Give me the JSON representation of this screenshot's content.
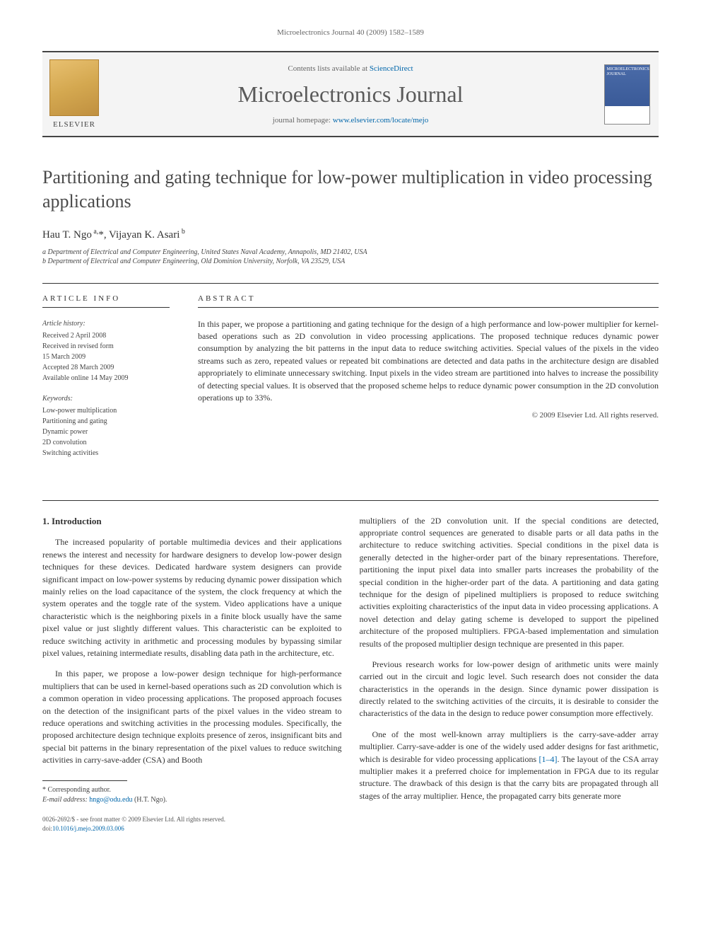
{
  "header": {
    "citation": "Microelectronics Journal 40 (2009) 1582–1589"
  },
  "banner": {
    "contents_prefix": "Contents lists available at ",
    "contents_link": "ScienceDirect",
    "journal_name": "Microelectronics Journal",
    "homepage_prefix": "journal homepage: ",
    "homepage_link": "www.elsevier.com/locate/mejo",
    "publisher": "ELSEVIER",
    "cover_label": "MICROELECTRONICS JOURNAL"
  },
  "title": "Partitioning and gating technique for low-power multiplication in video processing applications",
  "authors": "Hau T. Ngo a,*, Vijayan K. Asari b",
  "affiliations": {
    "a": "a Department of Electrical and Computer Engineering, United States Naval Academy, Annapolis, MD 21402, USA",
    "b": "b Department of Electrical and Computer Engineering, Old Dominion University, Norfolk, VA 23529, USA"
  },
  "article_info": {
    "label": "ARTICLE INFO",
    "history_label": "Article history:",
    "history": [
      "Received 2 April 2008",
      "Received in revised form",
      "15 March 2009",
      "Accepted 28 March 2009",
      "Available online 14 May 2009"
    ],
    "keywords_label": "Keywords:",
    "keywords": [
      "Low-power multiplication",
      "Partitioning and gating",
      "Dynamic power",
      "2D convolution",
      "Switching activities"
    ]
  },
  "abstract": {
    "label": "ABSTRACT",
    "text": "In this paper, we propose a partitioning and gating technique for the design of a high performance and low-power multiplier for kernel-based operations such as 2D convolution in video processing applications. The proposed technique reduces dynamic power consumption by analyzing the bit patterns in the input data to reduce switching activities. Special values of the pixels in the video streams such as zero, repeated values or repeated bit combinations are detected and data paths in the architecture design are disabled appropriately to eliminate unnecessary switching. Input pixels in the video stream are partitioned into halves to increase the possibility of detecting special values. It is observed that the proposed scheme helps to reduce dynamic power consumption in the 2D convolution operations up to 33%.",
    "copyright": "© 2009 Elsevier Ltd. All rights reserved."
  },
  "body": {
    "section_heading": "1. Introduction",
    "left_paragraphs": [
      "The increased popularity of portable multimedia devices and their applications renews the interest and necessity for hardware designers to develop low-power design techniques for these devices. Dedicated hardware system designers can provide significant impact on low-power systems by reducing dynamic power dissipation which mainly relies on the load capacitance of the system, the clock frequency at which the system operates and the toggle rate of the system. Video applications have a unique characteristic which is the neighboring pixels in a finite block usually have the same pixel value or just slightly different values. This characteristic can be exploited to reduce switching activity in arithmetic and processing modules by bypassing similar pixel values, retaining intermediate results, disabling data path in the architecture, etc.",
      "In this paper, we propose a low-power design technique for high-performance multipliers that can be used in kernel-based operations such as 2D convolution which is a common operation in video processing applications. The proposed approach focuses on the detection of the insignificant parts of the pixel values in the video stream to reduce operations and switching activities in the processing modules. Specifically, the proposed architecture design technique exploits presence of zeros, insignificant bits and special bit patterns in the binary representation of the pixel values to reduce switching activities in carry-save-adder (CSA) and Booth"
    ],
    "right_paragraphs": [
      "multipliers of the 2D convolution unit. If the special conditions are detected, appropriate control sequences are generated to disable parts or all data paths in the architecture to reduce switching activities. Special conditions in the pixel data is generally detected in the higher-order part of the binary representations. Therefore, partitioning the input pixel data into smaller parts increases the probability of the special condition in the higher-order part of the data. A partitioning and data gating technique for the design of pipelined multipliers is proposed to reduce switching activities exploiting characteristics of the input data in video processing applications. A novel detection and delay gating scheme is developed to support the pipelined architecture of the proposed multipliers. FPGA-based implementation and simulation results of the proposed multiplier design technique are presented in this paper.",
      "Previous research works for low-power design of arithmetic units were mainly carried out in the circuit and logic level. Such research does not consider the data characteristics in the operands in the design. Since dynamic power dissipation is directly related to the switching activities of the circuits, it is desirable to consider the characteristics of the data in the design to reduce power consumption more effectively.",
      "One of the most well-known array multipliers is the carry-save-adder array multiplier. Carry-save-adder is one of the widely used adder designs for fast arithmetic, which is desirable for video processing applications [1–4]. The layout of the CSA array multiplier makes it a preferred choice for implementation in FPGA due to its regular structure. The drawback of this design is that the carry bits are propagated through all stages of the array multiplier. Hence, the propagated carry bits generate more"
    ],
    "ref_text": "[1–4]"
  },
  "footnote": {
    "corresponding": "* Corresponding author.",
    "email_label": "E-mail address: ",
    "email": "hngo@odu.edu",
    "email_suffix": " (H.T. Ngo)."
  },
  "doi": {
    "line1": "0026-2692/$ - see front matter © 2009 Elsevier Ltd. All rights reserved.",
    "line2_prefix": "doi:",
    "line2_link": "10.1016/j.mejo.2009.03.006"
  },
  "colors": {
    "link": "#0066aa",
    "text": "#333333",
    "muted": "#666666",
    "rule": "#333333"
  }
}
